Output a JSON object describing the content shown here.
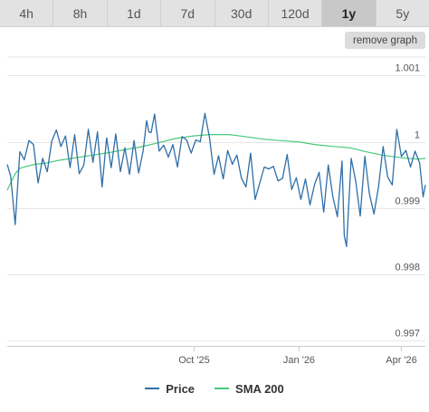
{
  "tabs": [
    {
      "label": "4h",
      "active": false
    },
    {
      "label": "8h",
      "active": false
    },
    {
      "label": "1d",
      "active": false
    },
    {
      "label": "7d",
      "active": false
    },
    {
      "label": "30d",
      "active": false
    },
    {
      "label": "120d",
      "active": false
    },
    {
      "label": "1y",
      "active": true
    },
    {
      "label": "5y",
      "active": false
    }
  ],
  "remove_graph_label": "remove graph",
  "colors": {
    "price": "#2f6fa7",
    "sma": "#47c97a",
    "grid": "#e6e6e6"
  },
  "chart_data": {
    "type": "line",
    "ylim": [
      0.99692,
      1.00128
    ],
    "yticks": [
      0.997,
      0.998,
      0.999,
      1,
      1.001
    ],
    "ytick_labels": [
      "0.997",
      "0.998",
      "0.999",
      "1",
      "1.001"
    ],
    "x_start": "2025-04-21",
    "x_end": "2026-04-22",
    "xticks": [
      {
        "date": "2025-10-01",
        "label": "Oct '25"
      },
      {
        "date": "2026-01-01",
        "label": "Jan '26"
      },
      {
        "date": "2026-04-01",
        "label": "Apr '26"
      }
    ],
    "legend": [
      "Price",
      "SMA 200"
    ],
    "series": [
      {
        "name": "Price",
        "x": [
          "2025-04-21",
          "2025-04-24",
          "2025-04-28",
          "2025-05-02",
          "2025-05-06",
          "2025-05-10",
          "2025-05-14",
          "2025-05-18",
          "2025-05-22",
          "2025-05-26",
          "2025-05-30",
          "2025-06-03",
          "2025-06-07",
          "2025-06-11",
          "2025-06-15",
          "2025-06-19",
          "2025-06-23",
          "2025-06-27",
          "2025-07-01",
          "2025-07-05",
          "2025-07-09",
          "2025-07-13",
          "2025-07-17",
          "2025-07-21",
          "2025-07-25",
          "2025-07-29",
          "2025-08-02",
          "2025-08-06",
          "2025-08-10",
          "2025-08-14",
          "2025-08-18",
          "2025-08-21",
          "2025-08-23",
          "2025-08-25",
          "2025-08-28",
          "2025-09-01",
          "2025-09-05",
          "2025-09-09",
          "2025-09-13",
          "2025-09-17",
          "2025-09-21",
          "2025-09-25",
          "2025-09-29",
          "2025-10-03",
          "2025-10-07",
          "2025-10-11",
          "2025-10-15",
          "2025-10-19",
          "2025-10-23",
          "2025-10-27",
          "2025-10-31",
          "2025-11-04",
          "2025-11-08",
          "2025-11-12",
          "2025-11-16",
          "2025-11-20",
          "2025-11-24",
          "2025-11-28",
          "2025-12-02",
          "2025-12-06",
          "2025-12-10",
          "2025-12-14",
          "2025-12-18",
          "2025-12-22",
          "2025-12-26",
          "2025-12-30",
          "2026-01-03",
          "2026-01-07",
          "2026-01-11",
          "2026-01-15",
          "2026-01-19",
          "2026-01-23",
          "2026-01-27",
          "2026-01-31",
          "2026-02-04",
          "2026-02-08",
          "2026-02-10",
          "2026-02-12",
          "2026-02-16",
          "2026-02-20",
          "2026-02-24",
          "2026-02-28",
          "2026-03-04",
          "2026-03-08",
          "2026-03-12",
          "2026-03-16",
          "2026-03-20",
          "2026-03-24",
          "2026-03-28",
          "2026-04-01",
          "2026-04-05",
          "2026-04-09",
          "2026-04-13",
          "2026-04-17",
          "2026-04-20",
          "2026-04-22"
        ],
        "values": [
          0.99966,
          0.99948,
          0.99875,
          0.99985,
          0.99973,
          1.00002,
          0.99996,
          0.99938,
          0.99975,
          0.99955,
          1.00001,
          1.00018,
          0.99993,
          1.00009,
          0.99961,
          1.00011,
          0.99952,
          0.99965,
          1.00019,
          0.99969,
          1.00015,
          0.99932,
          1.00006,
          0.99961,
          1.00012,
          0.99955,
          0.99991,
          0.99951,
          1.00002,
          0.99953,
          0.99987,
          1.00032,
          1.00015,
          1.00014,
          1.00042,
          0.99986,
          0.99995,
          0.99977,
          0.99996,
          0.99962,
          1.00008,
          1.00003,
          0.99983,
          1.00003,
          1.0,
          1.00043,
          1.00007,
          0.99951,
          0.99979,
          0.99944,
          0.99987,
          0.99966,
          0.9998,
          0.99945,
          0.99932,
          0.99983,
          0.99913,
          0.99938,
          0.99962,
          0.99959,
          0.99963,
          0.99941,
          0.99945,
          0.99981,
          0.99928,
          0.99946,
          0.99913,
          0.99944,
          0.99905,
          0.99936,
          0.99954,
          0.99894,
          0.99965,
          0.99917,
          0.99887,
          0.99971,
          0.99858,
          0.99842,
          0.99975,
          0.99941,
          0.99888,
          0.99978,
          0.99922,
          0.99891,
          0.99932,
          0.99993,
          0.99947,
          0.99935,
          1.00019,
          0.99978,
          0.99987,
          0.99962,
          0.99986,
          0.99968,
          0.99917,
          0.99935
        ]
      },
      {
        "name": "SMA 200",
        "x": [
          "2025-04-21",
          "2025-04-24",
          "2025-04-28",
          "2025-05-02",
          "2025-05-08",
          "2025-05-15",
          "2025-05-25",
          "2025-06-05",
          "2025-06-20",
          "2025-07-05",
          "2025-07-20",
          "2025-08-01",
          "2025-08-15",
          "2025-09-01",
          "2025-09-15",
          "2025-10-01",
          "2025-10-15",
          "2025-11-01",
          "2025-11-15",
          "2025-12-01",
          "2025-12-15",
          "2026-01-01",
          "2026-01-15",
          "2026-02-01",
          "2026-02-15",
          "2026-03-01",
          "2026-03-15",
          "2026-04-01",
          "2026-04-15",
          "2026-04-22"
        ],
        "values": [
          0.99927,
          0.99938,
          0.99952,
          0.9996,
          0.99963,
          0.99966,
          0.99968,
          0.99972,
          0.99976,
          0.9998,
          0.99984,
          0.99988,
          0.99992,
          0.99999,
          1.00005,
          1.00009,
          1.00011,
          1.00011,
          1.00008,
          1.00004,
          1.00002,
          1.0,
          0.99996,
          0.99993,
          0.99991,
          0.99985,
          0.9998,
          0.99976,
          0.99974,
          0.99975
        ]
      }
    ]
  }
}
